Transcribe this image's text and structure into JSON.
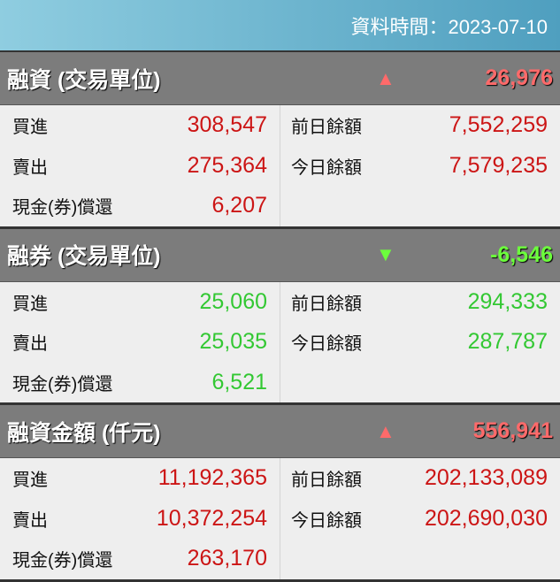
{
  "header": {
    "data_time": "資料時間：2023-07-10"
  },
  "colors": {
    "up": "#cc1515",
    "down": "#33c833"
  },
  "sections": [
    {
      "title": "融資 (交易單位)",
      "direction": "up",
      "arrow": "▲",
      "change": "26,976",
      "left": [
        {
          "label": "買進",
          "value": "308,547"
        },
        {
          "label": "賣出",
          "value": "275,364"
        },
        {
          "label": "現金(券)償還",
          "value": "6,207"
        }
      ],
      "right": [
        {
          "label": "前日餘額",
          "value": "7,552,259"
        },
        {
          "label": "今日餘額",
          "value": "7,579,235"
        }
      ]
    },
    {
      "title": "融券 (交易單位)",
      "direction": "down",
      "arrow": "▼",
      "change": "-6,546",
      "left": [
        {
          "label": "買進",
          "value": "25,060"
        },
        {
          "label": "賣出",
          "value": "25,035"
        },
        {
          "label": "現金(券)償還",
          "value": "6,521"
        }
      ],
      "right": [
        {
          "label": "前日餘額",
          "value": "294,333"
        },
        {
          "label": "今日餘額",
          "value": "287,787"
        }
      ]
    },
    {
      "title": "融資金額 (仟元)",
      "direction": "up",
      "arrow": "▲",
      "change": "556,941",
      "left": [
        {
          "label": "買進",
          "value": "11,192,365"
        },
        {
          "label": "賣出",
          "value": "10,372,254"
        },
        {
          "label": "現金(券)償還",
          "value": "263,170"
        }
      ],
      "right": [
        {
          "label": "前日餘額",
          "value": "202,133,089"
        },
        {
          "label": "今日餘額",
          "value": "202,690,030"
        }
      ]
    }
  ]
}
